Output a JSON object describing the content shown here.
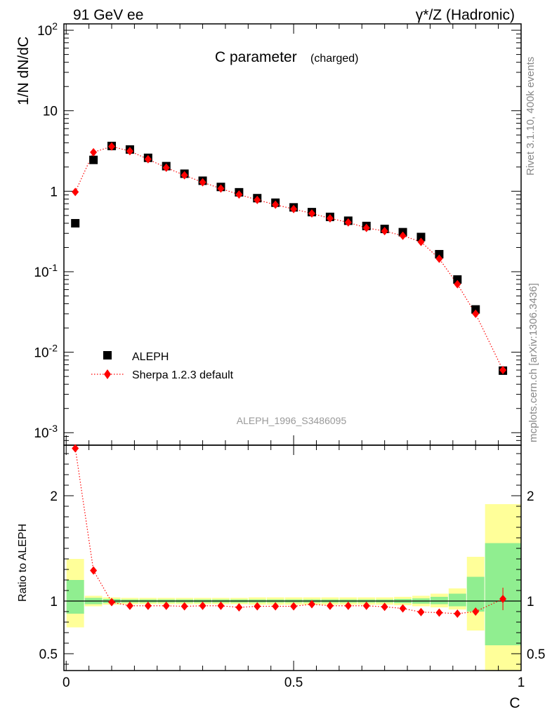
{
  "header": {
    "left": "91 GeV ee",
    "right": "γ*/Z (Hadronic)"
  },
  "side_labels": {
    "rivet": "Rivet 3.1.10,  400k events",
    "mcplots": "mcplots.cern.ch [arXiv:1306.3436]"
  },
  "chart_data": [
    {
      "type": "scatter",
      "panel": "main",
      "title": "C parameter",
      "title_sub": "(charged)",
      "ylabel": "1/N dN/dC",
      "yscale": "log",
      "ylim": [
        0.0007,
        120
      ],
      "xlim": [
        -0.005,
        1.0
      ],
      "yticks": [
        {
          "base": "10",
          "exp": "-3",
          "value": 0.001
        },
        {
          "base": "10",
          "exp": "-2",
          "value": 0.01
        },
        {
          "base": "10",
          "exp": "-1",
          "value": 0.1
        },
        {
          "base": "1",
          "exp": "",
          "value": 1
        },
        {
          "base": "10",
          "exp": "",
          "value": 10
        },
        {
          "base": "10",
          "exp": "2",
          "value": 100
        }
      ],
      "watermark": "ALEPH_1996_S3486095",
      "legend_position": "bottom-left",
      "series": [
        {
          "name": "ALEPH",
          "color": "#000000",
          "marker": "square",
          "x": [
            0.02,
            0.06,
            0.1,
            0.14,
            0.18,
            0.22,
            0.26,
            0.3,
            0.34,
            0.38,
            0.42,
            0.46,
            0.5,
            0.54,
            0.58,
            0.62,
            0.66,
            0.7,
            0.74,
            0.78,
            0.82,
            0.86,
            0.9,
            0.96
          ],
          "y": [
            0.4,
            2.45,
            3.65,
            3.3,
            2.6,
            2.05,
            1.65,
            1.35,
            1.13,
            0.97,
            0.82,
            0.72,
            0.63,
            0.55,
            0.48,
            0.43,
            0.37,
            0.34,
            0.31,
            0.27,
            0.165,
            0.08,
            0.034,
            0.0059
          ]
        },
        {
          "name": "Sherpa 1.2.3 default",
          "color": "#ff0000",
          "marker": "diamond",
          "line": "dotted",
          "x": [
            0.02,
            0.06,
            0.1,
            0.14,
            0.18,
            0.22,
            0.26,
            0.3,
            0.34,
            0.38,
            0.42,
            0.46,
            0.5,
            0.54,
            0.58,
            0.62,
            0.66,
            0.7,
            0.74,
            0.78,
            0.82,
            0.86,
            0.9,
            0.96
          ],
          "y": [
            0.98,
            3.05,
            3.6,
            3.15,
            2.5,
            1.96,
            1.58,
            1.29,
            1.08,
            0.91,
            0.78,
            0.68,
            0.6,
            0.53,
            0.46,
            0.41,
            0.35,
            0.32,
            0.28,
            0.235,
            0.145,
            0.07,
            0.03,
            0.006
          ]
        }
      ]
    },
    {
      "type": "scatter",
      "panel": "ratio",
      "ylabel": "Ratio to ALEPH",
      "xlabel": "C",
      "ylim": [
        0.34,
        2.48
      ],
      "xlim": [
        -0.005,
        1.0
      ],
      "xticks": [
        {
          "label": "0",
          "value": 0
        },
        {
          "label": "0.5",
          "value": 0.5
        },
        {
          "label": "1",
          "value": 1
        }
      ],
      "yticks": [
        {
          "label": "0.5",
          "value": 0.5
        },
        {
          "label": "1",
          "value": 1
        },
        {
          "label": "2",
          "value": 2
        }
      ],
      "bands": {
        "inner_color": "#90ee90",
        "outer_color": "#ffff99",
        "edges": [
          0.0,
          0.04,
          0.08,
          0.12,
          0.16,
          0.2,
          0.24,
          0.28,
          0.32,
          0.36,
          0.4,
          0.44,
          0.48,
          0.52,
          0.56,
          0.6,
          0.64,
          0.68,
          0.72,
          0.76,
          0.8,
          0.84,
          0.88,
          0.92,
          1.0
        ],
        "inner": [
          [
            0.88,
            1.2
          ],
          [
            0.97,
            1.03
          ],
          [
            0.98,
            1.02
          ],
          [
            0.985,
            1.015
          ],
          [
            0.985,
            1.015
          ],
          [
            0.985,
            1.015
          ],
          [
            0.985,
            1.015
          ],
          [
            0.985,
            1.015
          ],
          [
            0.985,
            1.015
          ],
          [
            0.985,
            1.015
          ],
          [
            0.985,
            1.015
          ],
          [
            0.985,
            1.015
          ],
          [
            0.985,
            1.015
          ],
          [
            0.985,
            1.015
          ],
          [
            0.985,
            1.015
          ],
          [
            0.985,
            1.015
          ],
          [
            0.985,
            1.015
          ],
          [
            0.985,
            1.015
          ],
          [
            0.98,
            1.02
          ],
          [
            0.975,
            1.025
          ],
          [
            0.97,
            1.04
          ],
          [
            0.95,
            1.07
          ],
          [
            0.9,
            1.23
          ],
          [
            0.58,
            1.55
          ]
        ],
        "outer": [
          [
            0.75,
            1.4
          ],
          [
            0.95,
            1.05
          ],
          [
            0.965,
            1.035
          ],
          [
            0.97,
            1.03
          ],
          [
            0.97,
            1.03
          ],
          [
            0.97,
            1.03
          ],
          [
            0.97,
            1.03
          ],
          [
            0.97,
            1.03
          ],
          [
            0.97,
            1.03
          ],
          [
            0.97,
            1.03
          ],
          [
            0.965,
            1.035
          ],
          [
            0.965,
            1.035
          ],
          [
            0.965,
            1.035
          ],
          [
            0.965,
            1.035
          ],
          [
            0.965,
            1.035
          ],
          [
            0.965,
            1.035
          ],
          [
            0.965,
            1.035
          ],
          [
            0.965,
            1.035
          ],
          [
            0.96,
            1.04
          ],
          [
            0.95,
            1.05
          ],
          [
            0.94,
            1.07
          ],
          [
            0.92,
            1.12
          ],
          [
            0.72,
            1.42
          ],
          [
            0.34,
            1.92
          ]
        ]
      },
      "series": [
        {
          "name": "Sherpa 1.2.3 default",
          "color": "#ff0000",
          "marker": "diamond",
          "line": "dotted",
          "x": [
            0.02,
            0.06,
            0.1,
            0.14,
            0.18,
            0.22,
            0.26,
            0.3,
            0.34,
            0.38,
            0.42,
            0.46,
            0.5,
            0.54,
            0.58,
            0.62,
            0.66,
            0.7,
            0.74,
            0.78,
            0.82,
            0.86,
            0.9,
            0.96
          ],
          "y": [
            2.45,
            1.29,
            0.99,
            0.955,
            0.955,
            0.955,
            0.95,
            0.955,
            0.955,
            0.94,
            0.95,
            0.95,
            0.95,
            0.97,
            0.955,
            0.955,
            0.955,
            0.945,
            0.93,
            0.895,
            0.89,
            0.88,
            0.9,
            1.02
          ]
        }
      ]
    }
  ]
}
